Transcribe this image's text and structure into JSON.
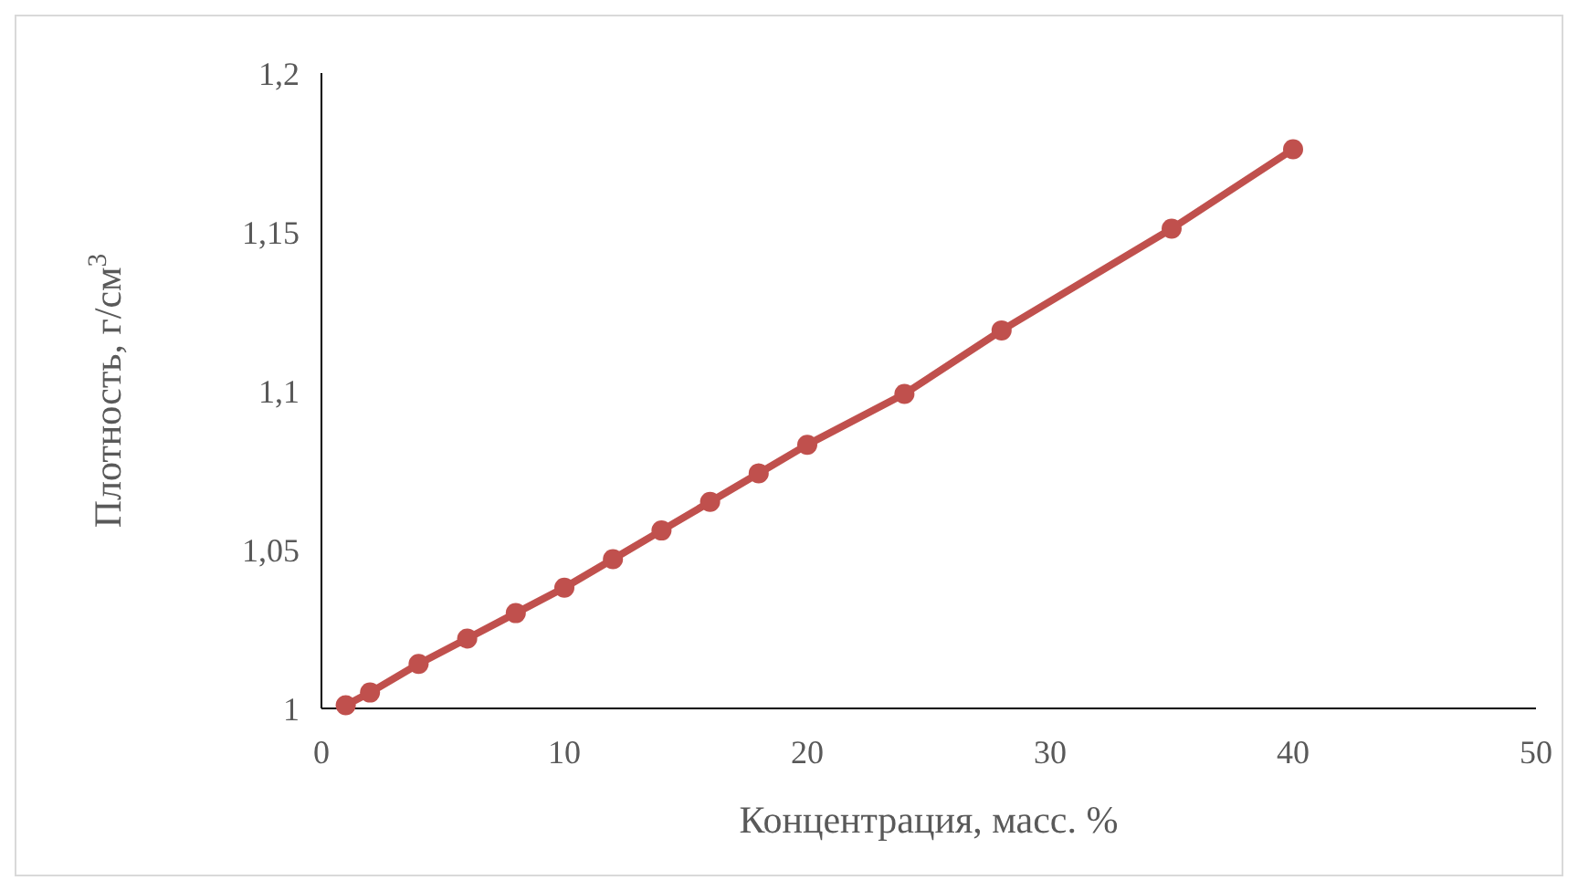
{
  "chart_data": {
    "type": "line",
    "xlabel": "Концентрация, масс. %",
    "ylabel": "Плотность, г/см$^{3}$",
    "x": [
      1,
      2,
      4,
      6,
      8,
      10,
      12,
      14,
      16,
      18,
      20,
      24,
      28,
      35,
      40
    ],
    "series": [
      {
        "color": "#c0504d",
        "values": [
          1.001,
          1.005,
          1.014,
          1.022,
          1.03,
          1.038,
          1.047,
          1.056,
          1.065,
          1.074,
          1.083,
          1.099,
          1.119,
          1.151,
          1.176
        ]
      }
    ],
    "xlim": [
      0,
      50
    ],
    "xticks": [
      0,
      10,
      20,
      30,
      40,
      50
    ],
    "ylim": [
      1,
      1.2
    ],
    "yticks": [
      1,
      {
        "value": 1.05,
        "label": "1,05"
      },
      {
        "value": 1.1,
        "label": "1,1"
      },
      {
        "value": 1.15,
        "label": "1,15"
      },
      {
        "value": 1.2,
        "label": "1,2"
      }
    ],
    "marker": "circle",
    "line_style": "solid"
  }
}
